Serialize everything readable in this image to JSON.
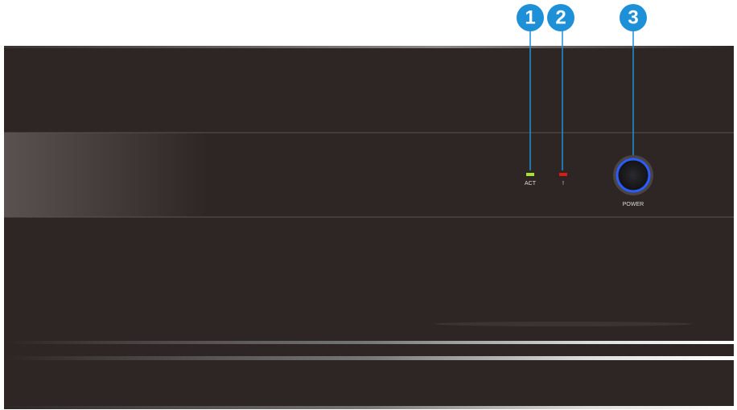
{
  "callouts": [
    {
      "number": "1"
    },
    {
      "number": "2"
    },
    {
      "number": "3"
    }
  ],
  "leds": [
    {
      "label": "ACT"
    },
    {
      "label": "!"
    }
  ],
  "button": {
    "label": "POWER"
  }
}
